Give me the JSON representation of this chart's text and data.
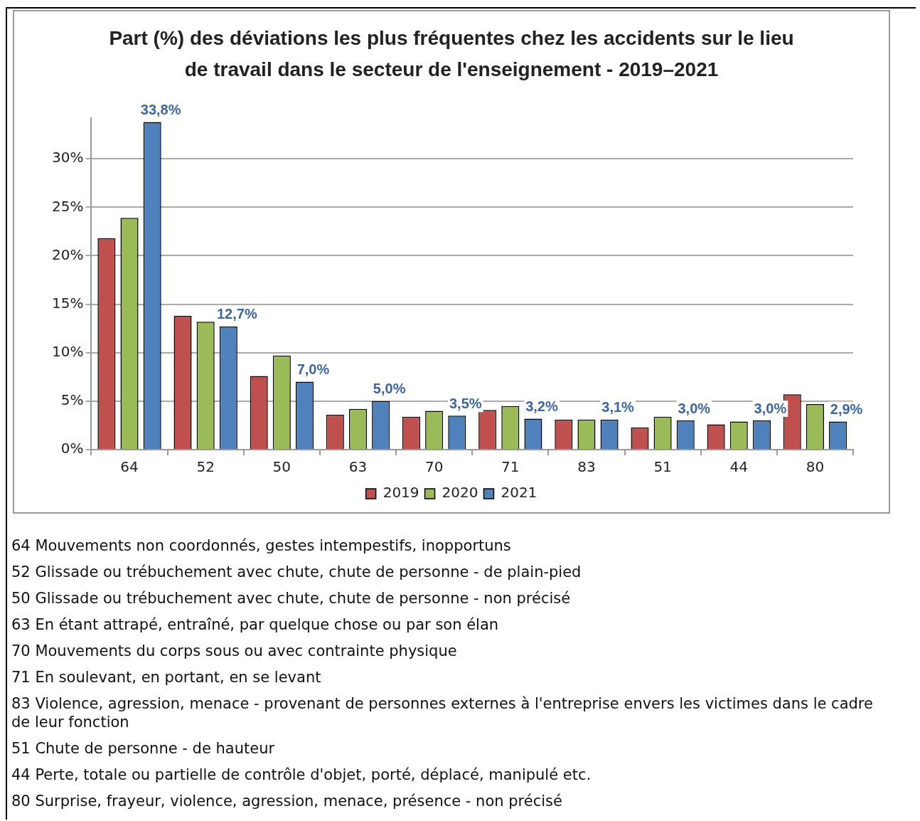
{
  "chart_data": {
    "type": "bar",
    "title": "Part (%) des déviations les plus fréquentes chez les accidents sur le lieu de travail dans le secteur de l'enseignement - 2019–2021",
    "categories": [
      "64",
      "52",
      "50",
      "63",
      "70",
      "71",
      "83",
      "51",
      "44",
      "80"
    ],
    "series": [
      {
        "name": "2019",
        "color": "#c0504d",
        "values": [
          21.8,
          13.8,
          7.6,
          3.6,
          3.4,
          4.1,
          3.1,
          2.3,
          2.6,
          5.7
        ]
      },
      {
        "name": "2020",
        "color": "#9bbb59",
        "values": [
          23.9,
          13.2,
          9.7,
          4.2,
          4.0,
          4.5,
          3.1,
          3.4,
          2.9,
          4.7
        ]
      },
      {
        "name": "2021",
        "color": "#4f81bd",
        "values": [
          33.8,
          12.7,
          7.0,
          5.0,
          3.5,
          3.2,
          3.1,
          3.0,
          3.0,
          2.9
        ],
        "value_labels": [
          "33,8%",
          "12,7%",
          "7,0%",
          "5,0%",
          "3,5%",
          "3,2%",
          "3,1%",
          "3,0%",
          "3,0%",
          "2,9%"
        ]
      }
    ],
    "ylim": [
      0,
      34.2
    ],
    "yticks": [
      {
        "value": 0,
        "label": "0%"
      },
      {
        "value": 5,
        "label": "5%"
      },
      {
        "value": 10,
        "label": "10%"
      },
      {
        "value": 15,
        "label": "15%"
      },
      {
        "value": 20,
        "label": "20%"
      },
      {
        "value": 25,
        "label": "25%"
      },
      {
        "value": 30,
        "label": "30%"
      }
    ],
    "grid": "y",
    "legend": "bottom",
    "annotations": [
      "64 Mouvements non coordonnés, gestes intempestifs, inopportuns",
      "52 Glissade ou trébuchement avec chute, chute de personne - de plain-pied",
      "50 Glissade ou trébuchement avec chute, chute de personne - non précisé",
      "63 En étant attrapé, entraîné, par quelque chose ou par son élan",
      "70 Mouvements du corps sous ou avec contrainte physique",
      "71 En soulevant, en portant, en se levant",
      "83 Violence, agression, menace - provenant de personnes externes à l'entreprise envers les victimes dans le cadre de leur fonction",
      "51 Chute de personne - de hauteur",
      "44 Perte, totale ou partielle de contrôle d'objet, porté, déplacé, manipulé etc.",
      "80 Surprise, frayeur, violence, agression, menace, présence - non précisé"
    ]
  }
}
